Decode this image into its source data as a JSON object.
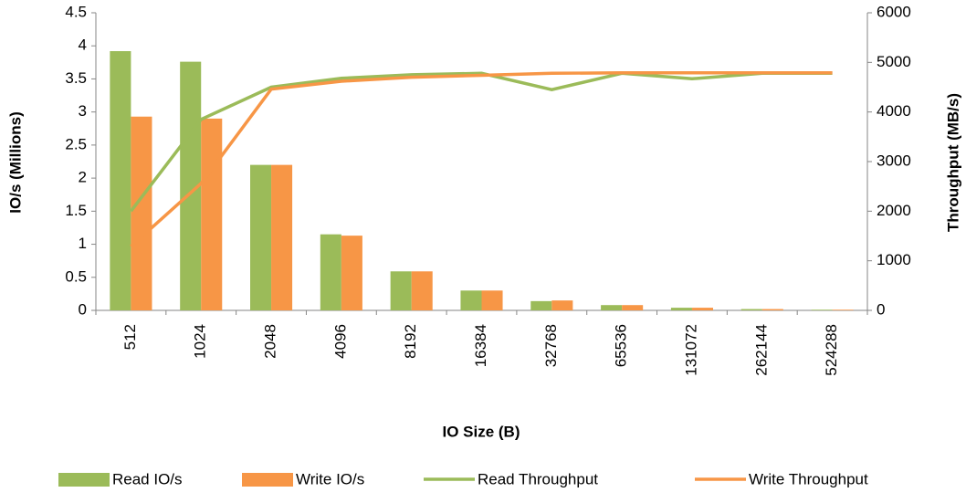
{
  "chart_data": {
    "type": "bar",
    "x_label": "IO Size (B)",
    "y_label": "IO/s (Millions)",
    "y2_label": "Throughput (MB/s)",
    "categories": [
      "512",
      "1024",
      "2048",
      "4096",
      "8192",
      "16384",
      "32768",
      "65536",
      "131072",
      "262144",
      "524288"
    ],
    "series": [
      {
        "name": "Read IO/s",
        "type": "bar",
        "color": "#9bbb59",
        "values": [
          3.92,
          3.76,
          2.2,
          1.15,
          0.59,
          0.3,
          0.14,
          0.08,
          0.04,
          0.02,
          0.01
        ]
      },
      {
        "name": "Write IO/s",
        "type": "bar",
        "color": "#f79646",
        "values": [
          2.93,
          2.9,
          2.2,
          1.13,
          0.59,
          0.3,
          0.15,
          0.08,
          0.04,
          0.02,
          0.01
        ]
      },
      {
        "name": "Read Throughput",
        "type": "line",
        "axis": "y2",
        "color": "#9bbb59",
        "values": [
          2000,
          3850,
          4500,
          4680,
          4750,
          4780,
          4450,
          4780,
          4670,
          4780,
          4780
        ]
      },
      {
        "name": "Write Throughput",
        "type": "line",
        "axis": "y2",
        "color": "#f79646",
        "values": [
          1290,
          2560,
          4460,
          4620,
          4700,
          4740,
          4780,
          4790,
          4790,
          4790,
          4790
        ]
      }
    ],
    "ylim": [
      0,
      4.5
    ],
    "yticks": [
      0,
      0.5,
      1,
      1.5,
      2,
      2.5,
      3,
      3.5,
      4,
      4.5
    ],
    "y2lim": [
      0,
      6000
    ],
    "y2ticks": [
      0,
      1000,
      2000,
      3000,
      4000,
      5000,
      6000
    ],
    "grid": false
  }
}
